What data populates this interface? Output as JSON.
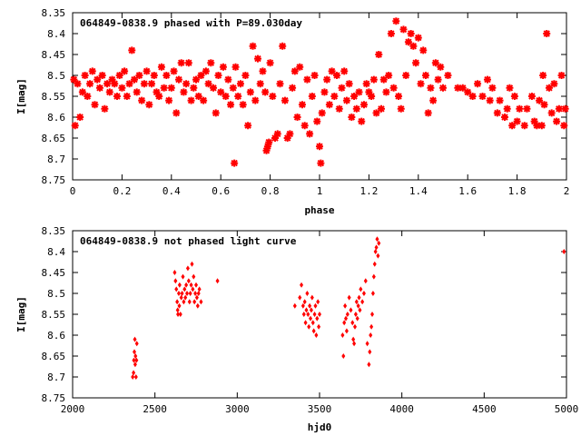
{
  "chart_data": [
    {
      "type": "scatter",
      "title": "064849-0838.9 phased with P=89.030day",
      "xlabel": "phase",
      "ylabel": "I[mag]",
      "xlim": [
        0,
        2
      ],
      "ylim": [
        8.75,
        8.35
      ],
      "y_inverted": true,
      "grid": false,
      "legend": "none",
      "marker": "asterisk",
      "x_ticks": [
        "0",
        "0.2",
        "0.4",
        "0.6",
        "0.8",
        "1",
        "1.2",
        "1.4",
        "1.6",
        "1.8",
        "2"
      ],
      "y_ticks": [
        "8.35",
        "8.4",
        "8.45",
        "8.5",
        "8.55",
        "8.6",
        "8.65",
        "8.7",
        "8.75"
      ],
      "color": "#ff0000",
      "points": [
        [
          0.005,
          8.51
        ],
        [
          0.01,
          8.62
        ],
        [
          0.02,
          8.52
        ],
        [
          0.03,
          8.6
        ],
        [
          0.04,
          8.54
        ],
        [
          0.05,
          8.5
        ],
        [
          0.06,
          8.55
        ],
        [
          0.07,
          8.52
        ],
        [
          0.08,
          8.49
        ],
        [
          0.09,
          8.57
        ],
        [
          0.1,
          8.51
        ],
        [
          0.11,
          8.53
        ],
        [
          0.12,
          8.5
        ],
        [
          0.13,
          8.58
        ],
        [
          0.14,
          8.52
        ],
        [
          0.15,
          8.54
        ],
        [
          0.16,
          8.51
        ],
        [
          0.17,
          8.52
        ],
        [
          0.18,
          8.55
        ],
        [
          0.19,
          8.5
        ],
        [
          0.2,
          8.53
        ],
        [
          0.21,
          8.49
        ],
        [
          0.22,
          8.55
        ],
        [
          0.23,
          8.52
        ],
        [
          0.24,
          8.44
        ],
        [
          0.25,
          8.51
        ],
        [
          0.26,
          8.54
        ],
        [
          0.27,
          8.5
        ],
        [
          0.28,
          8.56
        ],
        [
          0.29,
          8.52
        ],
        [
          0.3,
          8.49
        ],
        [
          0.31,
          8.57
        ],
        [
          0.32,
          8.52
        ],
        [
          0.33,
          8.5
        ],
        [
          0.34,
          8.54
        ],
        [
          0.35,
          8.55
        ],
        [
          0.36,
          8.48
        ],
        [
          0.37,
          8.53
        ],
        [
          0.38,
          8.5
        ],
        [
          0.39,
          8.56
        ],
        [
          0.4,
          8.53
        ],
        [
          0.41,
          8.49
        ],
        [
          0.42,
          8.59
        ],
        [
          0.43,
          8.51
        ],
        [
          0.44,
          8.47
        ],
        [
          0.45,
          8.54
        ],
        [
          0.46,
          8.52
        ],
        [
          0.47,
          8.47
        ],
        [
          0.48,
          8.56
        ],
        [
          0.49,
          8.53
        ],
        [
          0.5,
          8.51
        ],
        [
          0.51,
          8.55
        ],
        [
          0.52,
          8.5
        ],
        [
          0.53,
          8.56
        ],
        [
          0.54,
          8.49
        ],
        [
          0.55,
          8.52
        ],
        [
          0.56,
          8.47
        ],
        [
          0.57,
          8.53
        ],
        [
          0.58,
          8.59
        ],
        [
          0.59,
          8.5
        ],
        [
          0.6,
          8.54
        ],
        [
          0.61,
          8.48
        ],
        [
          0.62,
          8.55
        ],
        [
          0.63,
          8.51
        ],
        [
          0.64,
          8.57
        ],
        [
          0.65,
          8.53
        ],
        [
          0.655,
          8.71
        ],
        [
          0.66,
          8.48
        ],
        [
          0.67,
          8.55
        ],
        [
          0.68,
          8.52
        ],
        [
          0.69,
          8.57
        ],
        [
          0.7,
          8.5
        ],
        [
          0.71,
          8.62
        ],
        [
          0.72,
          8.54
        ],
        [
          0.73,
          8.43
        ],
        [
          0.74,
          8.56
        ],
        [
          0.75,
          8.46
        ],
        [
          0.76,
          8.52
        ],
        [
          0.77,
          8.49
        ],
        [
          0.78,
          8.54
        ],
        [
          0.785,
          8.68
        ],
        [
          0.79,
          8.67
        ],
        [
          0.795,
          8.66
        ],
        [
          0.8,
          8.47
        ],
        [
          0.81,
          8.55
        ],
        [
          0.82,
          8.65
        ],
        [
          0.83,
          8.64
        ],
        [
          0.84,
          8.52
        ],
        [
          0.85,
          8.43
        ],
        [
          0.86,
          8.56
        ],
        [
          0.87,
          8.65
        ],
        [
          0.88,
          8.64
        ],
        [
          0.89,
          8.53
        ],
        [
          0.9,
          8.49
        ],
        [
          0.91,
          8.6
        ],
        [
          0.92,
          8.48
        ],
        [
          0.93,
          8.57
        ],
        [
          0.94,
          8.62
        ],
        [
          0.95,
          8.51
        ],
        [
          0.96,
          8.64
        ],
        [
          0.97,
          8.55
        ],
        [
          0.98,
          8.5
        ],
        [
          0.99,
          8.61
        ],
        [
          1.0,
          8.67
        ],
        [
          1.005,
          8.71
        ],
        [
          1.01,
          8.59
        ],
        [
          1.02,
          8.54
        ],
        [
          1.03,
          8.51
        ],
        [
          1.04,
          8.57
        ],
        [
          1.05,
          8.49
        ],
        [
          1.06,
          8.55
        ],
        [
          1.07,
          8.5
        ],
        [
          1.08,
          8.58
        ],
        [
          1.09,
          8.53
        ],
        [
          1.1,
          8.49
        ],
        [
          1.11,
          8.56
        ],
        [
          1.12,
          8.52
        ],
        [
          1.13,
          8.6
        ],
        [
          1.14,
          8.55
        ],
        [
          1.15,
          8.58
        ],
        [
          1.16,
          8.54
        ],
        [
          1.17,
          8.61
        ],
        [
          1.18,
          8.57
        ],
        [
          1.19,
          8.52
        ],
        [
          1.2,
          8.54
        ],
        [
          1.21,
          8.55
        ],
        [
          1.22,
          8.51
        ],
        [
          1.23,
          8.59
        ],
        [
          1.24,
          8.45
        ],
        [
          1.25,
          8.58
        ],
        [
          1.26,
          8.51
        ],
        [
          1.27,
          8.54
        ],
        [
          1.28,
          8.5
        ],
        [
          1.29,
          8.4
        ],
        [
          1.3,
          8.53
        ],
        [
          1.31,
          8.37
        ],
        [
          1.32,
          8.55
        ],
        [
          1.33,
          8.58
        ],
        [
          1.34,
          8.39
        ],
        [
          1.35,
          8.5
        ],
        [
          1.36,
          8.42
        ],
        [
          1.37,
          8.4
        ],
        [
          1.38,
          8.43
        ],
        [
          1.39,
          8.47
        ],
        [
          1.4,
          8.41
        ],
        [
          1.41,
          8.52
        ],
        [
          1.42,
          8.44
        ],
        [
          1.43,
          8.5
        ],
        [
          1.44,
          8.59
        ],
        [
          1.45,
          8.53
        ],
        [
          1.46,
          8.56
        ],
        [
          1.47,
          8.47
        ],
        [
          1.48,
          8.51
        ],
        [
          1.49,
          8.48
        ],
        [
          1.5,
          8.53
        ],
        [
          1.52,
          8.5
        ],
        [
          1.56,
          8.53
        ],
        [
          1.58,
          8.53
        ],
        [
          1.6,
          8.54
        ],
        [
          1.62,
          8.55
        ],
        [
          1.64,
          8.52
        ],
        [
          1.66,
          8.55
        ],
        [
          1.68,
          8.51
        ],
        [
          1.69,
          8.56
        ],
        [
          1.7,
          8.53
        ],
        [
          1.72,
          8.59
        ],
        [
          1.73,
          8.56
        ],
        [
          1.75,
          8.6
        ],
        [
          1.76,
          8.58
        ],
        [
          1.77,
          8.53
        ],
        [
          1.78,
          8.62
        ],
        [
          1.79,
          8.55
        ],
        [
          1.8,
          8.61
        ],
        [
          1.81,
          8.58
        ],
        [
          1.83,
          8.62
        ],
        [
          1.84,
          8.58
        ],
        [
          1.86,
          8.55
        ],
        [
          1.87,
          8.61
        ],
        [
          1.88,
          8.62
        ],
        [
          1.89,
          8.56
        ],
        [
          1.9,
          8.62
        ],
        [
          1.905,
          8.5
        ],
        [
          1.91,
          8.57
        ],
        [
          1.92,
          8.4
        ],
        [
          1.93,
          8.53
        ],
        [
          1.94,
          8.59
        ],
        [
          1.95,
          8.52
        ],
        [
          1.96,
          8.61
        ],
        [
          1.97,
          8.58
        ],
        [
          1.98,
          8.5
        ],
        [
          1.99,
          8.62
        ],
        [
          1.995,
          8.58
        ]
      ]
    },
    {
      "type": "scatter",
      "title": "064849-0838.9 not phased light curve",
      "xlabel": "hjd0",
      "ylabel": "I[mag]",
      "xlim": [
        2000,
        5000
      ],
      "ylim": [
        8.75,
        8.35
      ],
      "y_inverted": true,
      "grid": false,
      "legend": "none",
      "marker": "diamond",
      "x_ticks": [
        "2000",
        "2500",
        "3000",
        "3500",
        "4000",
        "4500",
        "5000"
      ],
      "y_ticks": [
        "8.35",
        "8.4",
        "8.45",
        "8.5",
        "8.55",
        "8.6",
        "8.65",
        "8.7",
        "8.75"
      ],
      "color": "#ff0000",
      "points": [
        [
          2365,
          8.7
        ],
        [
          2370,
          8.69
        ],
        [
          2372,
          8.66
        ],
        [
          2375,
          8.64
        ],
        [
          2378,
          8.61
        ],
        [
          2380,
          8.67
        ],
        [
          2382,
          8.65
        ],
        [
          2385,
          8.7
        ],
        [
          2388,
          8.66
        ],
        [
          2390,
          8.62
        ],
        [
          2620,
          8.45
        ],
        [
          2625,
          8.47
        ],
        [
          2630,
          8.49
        ],
        [
          2635,
          8.52
        ],
        [
          2638,
          8.54
        ],
        [
          2640,
          8.55
        ],
        [
          2645,
          8.5
        ],
        [
          2648,
          8.53
        ],
        [
          2650,
          8.48
        ],
        [
          2655,
          8.55
        ],
        [
          2660,
          8.51
        ],
        [
          2665,
          8.5
        ],
        [
          2670,
          8.46
        ],
        [
          2675,
          8.52
        ],
        [
          2680,
          8.49
        ],
        [
          2685,
          8.51
        ],
        [
          2690,
          8.48
        ],
        [
          2695,
          8.5
        ],
        [
          2700,
          8.44
        ],
        [
          2705,
          8.47
        ],
        [
          2710,
          8.52
        ],
        [
          2715,
          8.5
        ],
        [
          2720,
          8.48
        ],
        [
          2725,
          8.43
        ],
        [
          2730,
          8.49
        ],
        [
          2735,
          8.46
        ],
        [
          2740,
          8.52
        ],
        [
          2745,
          8.5
        ],
        [
          2750,
          8.48
        ],
        [
          2755,
          8.51
        ],
        [
          2760,
          8.53
        ],
        [
          2765,
          8.5
        ],
        [
          2770,
          8.49
        ],
        [
          2780,
          8.52
        ],
        [
          2880,
          8.47
        ],
        [
          3350,
          8.53
        ],
        [
          3380,
          8.51
        ],
        [
          3390,
          8.48
        ],
        [
          3400,
          8.53
        ],
        [
          3405,
          8.55
        ],
        [
          3410,
          8.52
        ],
        [
          3415,
          8.57
        ],
        [
          3420,
          8.54
        ],
        [
          3425,
          8.5
        ],
        [
          3430,
          8.55
        ],
        [
          3435,
          8.58
        ],
        [
          3440,
          8.53
        ],
        [
          3445,
          8.56
        ],
        [
          3450,
          8.54
        ],
        [
          3455,
          8.51
        ],
        [
          3460,
          8.57
        ],
        [
          3465,
          8.59
        ],
        [
          3470,
          8.55
        ],
        [
          3475,
          8.53
        ],
        [
          3480,
          8.6
        ],
        [
          3485,
          8.56
        ],
        [
          3490,
          8.52
        ],
        [
          3495,
          8.58
        ],
        [
          3500,
          8.55
        ],
        [
          3640,
          8.6
        ],
        [
          3645,
          8.65
        ],
        [
          3650,
          8.57
        ],
        [
          3655,
          8.53
        ],
        [
          3660,
          8.56
        ],
        [
          3665,
          8.59
        ],
        [
          3670,
          8.55
        ],
        [
          3680,
          8.51
        ],
        [
          3690,
          8.54
        ],
        [
          3700,
          8.57
        ],
        [
          3705,
          8.61
        ],
        [
          3710,
          8.62
        ],
        [
          3715,
          8.58
        ],
        [
          3720,
          8.55
        ],
        [
          3725,
          8.52
        ],
        [
          3730,
          8.56
        ],
        [
          3735,
          8.53
        ],
        [
          3740,
          8.51
        ],
        [
          3745,
          8.54
        ],
        [
          3750,
          8.49
        ],
        [
          3760,
          8.52
        ],
        [
          3770,
          8.5
        ],
        [
          3780,
          8.47
        ],
        [
          3790,
          8.62
        ],
        [
          3800,
          8.67
        ],
        [
          3805,
          8.64
        ],
        [
          3810,
          8.6
        ],
        [
          3815,
          8.58
        ],
        [
          3820,
          8.55
        ],
        [
          3825,
          8.5
        ],
        [
          3830,
          8.46
        ],
        [
          3835,
          8.43
        ],
        [
          3840,
          8.4
        ],
        [
          3845,
          8.39
        ],
        [
          3850,
          8.37
        ],
        [
          3855,
          8.41
        ],
        [
          3860,
          8.38
        ],
        [
          4985,
          8.4
        ]
      ]
    }
  ]
}
